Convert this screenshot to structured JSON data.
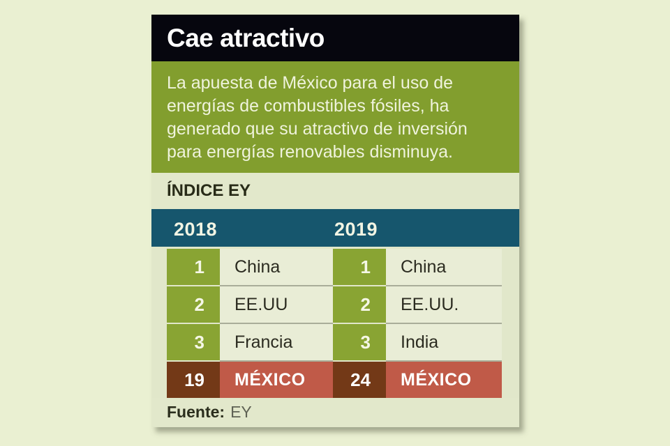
{
  "chart_data": {
    "type": "table",
    "title": "Cae atractivo",
    "description_lines": [
      "La apuesta de México para el uso de",
      "energías de combustibles fósiles, ha",
      "generado que su atractivo de inversión",
      "para energías renovables disminuya."
    ],
    "index_label": "ÍNDICE EY",
    "series": [
      {
        "year": "2018",
        "rows": [
          {
            "rank": "1",
            "country": "China"
          },
          {
            "rank": "2",
            "country": "EE.UU"
          },
          {
            "rank": "3",
            "country": "Francia"
          },
          {
            "rank": "19",
            "country": "MÉXICO",
            "highlight": true
          }
        ]
      },
      {
        "year": "2019",
        "rows": [
          {
            "rank": "1",
            "country": "China"
          },
          {
            "rank": "2",
            "country": "EE.UU."
          },
          {
            "rank": "3",
            "country": "India"
          },
          {
            "rank": "24",
            "country": "MÉXICO",
            "highlight": true
          }
        ]
      }
    ],
    "source_label": "Fuente:",
    "source": "EY"
  },
  "colors": {
    "page_bg": "#eaf0d2",
    "card_bg": "#e1e7ca",
    "header_bg": "#06060e",
    "description_bg": "#829e2e",
    "index_bg": "#e2e8cb",
    "year_bar_bg": "#16566d",
    "rank_box_green": "#89a433",
    "row_cell_bg": "#e9edd6",
    "mexico_rank_brown": "#733917",
    "mexico_cell_red": "#c05a48"
  }
}
